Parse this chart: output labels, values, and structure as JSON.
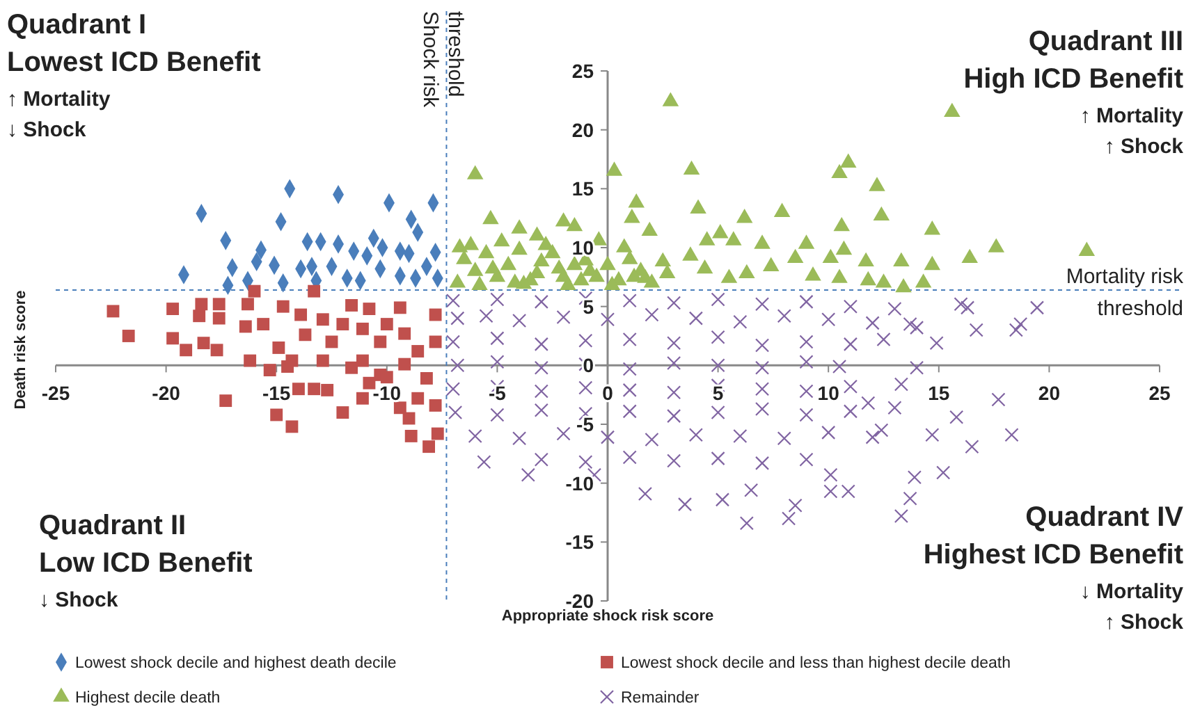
{
  "chart_data": {
    "type": "scatter",
    "xlabel": "Appropriate shock risk score",
    "ylabel": "Death risk score",
    "xlim": [
      -25,
      25
    ],
    "ylim": [
      -20,
      25
    ],
    "xticks": [
      -25,
      -20,
      -15,
      -10,
      -5,
      0,
      5,
      10,
      15,
      20,
      25
    ],
    "yticks": [
      -20,
      -15,
      -10,
      -5,
      0,
      5,
      10,
      15,
      20,
      25
    ],
    "grid": false,
    "legend": "bottom",
    "ref_lines": [
      {
        "axis": "x",
        "value": -7.3,
        "label": "Shock risk threshold",
        "color": "#4a7ebb",
        "line_style": "dashed"
      },
      {
        "axis": "y",
        "value": 6.4,
        "label": "Mortality risk threshold",
        "color": "#4a7ebb",
        "line_style": "dashed"
      }
    ],
    "annotations": [
      "Quadrant I\nLowest ICD Benefit\n↑ Mortality\n↓ Shock",
      "Quadrant III\nHigh ICD Benefit\n↑ Mortality\n↑ Shock",
      "Quadrant II\nLow ICD Benefit\n↓ Shock",
      "Quadrant IV\nHighest ICD Benefit\n↓ Mortality\n↑ Shock"
    ],
    "series": [
      {
        "name": "Lowest shock decile and highest death decile",
        "color": "#4a7ebb",
        "marker": "diamond",
        "x": [
          -14.4,
          -12.2,
          -18.4,
          -9.9,
          -7.9,
          -14.8,
          -8.9,
          -8.6,
          -17.3,
          -15.7,
          -13.6,
          -13.0,
          -12.2,
          -10.6,
          -19.2,
          -17.0,
          -15.9,
          -15.1,
          -13.9,
          -13.4,
          -12.5,
          -11.5,
          -10.9,
          -10.2,
          -9.4,
          -9.0,
          -7.8,
          -10.3,
          -9.4,
          -8.2,
          -16.3,
          -11.8,
          -11.2,
          -13.2,
          -8.7,
          -7.7,
          -17.2,
          -14.7
        ],
        "values": [
          15.0,
          14.5,
          12.9,
          13.8,
          13.8,
          12.2,
          12.4,
          11.3,
          10.6,
          9.8,
          10.5,
          10.5,
          10.3,
          10.8,
          7.7,
          8.3,
          8.8,
          8.5,
          8.2,
          8.4,
          8.4,
          9.7,
          9.3,
          10.0,
          9.7,
          9.5,
          9.6,
          8.2,
          7.6,
          8.4,
          7.2,
          7.4,
          7.2,
          7.2,
          7.4,
          7.4,
          6.8,
          7.0
        ]
      },
      {
        "name": "Lowest shock decile and less than highest decile death",
        "color": "#c0504d",
        "marker": "square",
        "x": [
          -22.4,
          -21.7,
          -19.7,
          -19.7,
          -19.1,
          -18.4,
          -18.5,
          -18.3,
          -17.7,
          -17.6,
          -17.6,
          -17.3,
          -16.4,
          -16.2,
          -16.3,
          -16.0,
          -15.3,
          -15.0,
          -14.3,
          -14.5,
          -14.0,
          -13.3,
          -12.7,
          -15.6,
          -14.9,
          -14.7,
          -13.9,
          -13.3,
          -12.9,
          -12.0,
          -12.0,
          -11.1,
          -11.1,
          -10.3,
          -10.3,
          -9.4,
          -9.4,
          -9.0,
          -8.9,
          -8.1,
          -7.7,
          -7.8,
          -8.6,
          -8.2,
          -11.6,
          -10.8,
          -10.0,
          -9.2,
          -12.5,
          -11.6,
          -10.8,
          -10.0,
          -9.2,
          -7.8,
          -7.8,
          -8.6,
          -13.7,
          -14.3,
          -12.9,
          -11.1
        ],
        "values": [
          4.6,
          2.5,
          4.8,
          2.3,
          1.3,
          5.2,
          4.2,
          1.9,
          1.3,
          5.2,
          4.0,
          -3.0,
          3.3,
          0.4,
          5.2,
          6.3,
          -0.4,
          -4.2,
          -5.2,
          -0.1,
          -2.0,
          -2.0,
          -2.1,
          3.5,
          1.5,
          5.0,
          4.3,
          6.3,
          3.9,
          3.5,
          -4.0,
          0.4,
          -2.8,
          2.0,
          -0.8,
          4.9,
          -3.6,
          -4.5,
          -6.0,
          -6.9,
          -5.8,
          4.3,
          1.2,
          -1.1,
          5.1,
          4.8,
          3.5,
          2.7,
          2.0,
          -0.2,
          -1.5,
          -1.0,
          0.1,
          2.0,
          -3.4,
          -2.8,
          2.6,
          0.4,
          0.4,
          3.1
        ]
      },
      {
        "name": "Highest decile death",
        "color": "#9bbb59",
        "marker": "triangle",
        "x": [
          2.85,
          15.6,
          -6.0,
          0.3,
          3.8,
          10.9,
          10.5,
          12.2,
          4.1,
          12.4,
          7.9,
          6.2,
          1.3,
          1.1,
          14.7,
          10.6,
          1.9,
          -5.3,
          -4.0,
          7.0,
          9.0,
          17.6,
          21.7,
          16.4,
          14.7,
          13.3,
          11.7,
          10.7,
          10.1,
          8.5,
          5.1,
          5.7,
          4.5,
          3.75,
          0.75,
          -0.4,
          -2.0,
          -1.5,
          -3.2,
          -6.7,
          14.3,
          13.4,
          12.5,
          11.8,
          10.5,
          9.3,
          7.4,
          6.3,
          5.5,
          4.4,
          2.7,
          1.7,
          -6.5,
          -6.0,
          -5.5,
          -5.0,
          -4.5,
          -4.0,
          -3.5,
          -3.0,
          -2.5,
          -2.0,
          -1.5,
          -1.0,
          -0.5,
          0.0,
          0.5,
          1.0,
          1.5,
          2.0,
          2.5,
          -6.8,
          -5.8,
          -4.8,
          -3.8,
          -2.8,
          -1.8,
          -0.8,
          0.2,
          1.2,
          -5.2,
          -3.2,
          -1.2,
          -2.2,
          -4.2,
          -6.2
        ],
        "values": [
          22.4,
          21.5,
          16.2,
          16.5,
          16.6,
          17.2,
          16.3,
          15.2,
          13.3,
          12.7,
          13.0,
          12.5,
          13.8,
          12.5,
          11.5,
          11.8,
          11.4,
          12.4,
          11.6,
          10.3,
          10.3,
          10.0,
          9.7,
          9.1,
          8.5,
          8.8,
          8.8,
          9.8,
          9.1,
          9.1,
          11.2,
          10.6,
          10.6,
          9.3,
          10.0,
          10.6,
          12.2,
          11.8,
          11.0,
          10.0,
          7.0,
          6.6,
          7.0,
          7.2,
          7.4,
          7.6,
          8.4,
          7.8,
          7.4,
          8.2,
          7.8,
          7.4,
          9.0,
          8.0,
          9.5,
          7.5,
          8.5,
          9.8,
          7.2,
          8.8,
          9.5,
          7.5,
          8.5,
          8.9,
          7.5,
          8.5,
          7.2,
          9.0,
          8.0,
          7.0,
          8.8,
          7.0,
          6.8,
          10.5,
          6.9,
          10.2,
          6.8,
          8.0,
          6.8,
          7.5,
          8.2,
          7.8,
          7.2,
          8.2,
          7.0,
          10.2
        ]
      },
      {
        "name": "Remainder",
        "color": "#8064a2",
        "marker": "cross",
        "x": [
          19.45,
          18.7,
          18.5,
          16.7,
          16.3,
          16.0,
          17.7,
          18.3,
          15.8,
          16.5,
          15.2,
          13.9,
          13.7,
          13.3,
          10.9,
          10.1,
          8.2,
          6.3,
          8.5,
          6.5,
          5.2,
          3.5,
          1.7,
          -3.6,
          -5.6,
          -0.6,
          10.1,
          11.8,
          14.9,
          13.7,
          13.3,
          14.7,
          12.4,
          14.0,
          -7.0,
          -5.0,
          -3.0,
          -1.0,
          1.0,
          3.0,
          5.0,
          7.0,
          9.0,
          11.0,
          13.0,
          -6.8,
          -5.5,
          -4.0,
          -2.0,
          0.0,
          2.0,
          4.0,
          6.0,
          8.0,
          10.0,
          12.0,
          14.0,
          -7.0,
          -5.0,
          -3.0,
          -1.0,
          1.0,
          3.0,
          5.0,
          7.0,
          9.0,
          11.0,
          12.5,
          -6.8,
          -5.0,
          -3.0,
          -1.0,
          1.0,
          3.0,
          5.0,
          7.0,
          9.0,
          10.5,
          -7.0,
          -5.0,
          -3.0,
          -1.0,
          1.0,
          3.0,
          5.0,
          7.0,
          9.0,
          11.0,
          -6.9,
          -5.0,
          -3.0,
          -1.0,
          1.0,
          3.0,
          5.0,
          7.0,
          9.0,
          11.0,
          13.0,
          -6.0,
          -4.0,
          -2.0,
          0.0,
          2.0,
          4.0,
          6.0,
          8.0,
          10.0,
          12.0,
          -3.0,
          -1.0,
          1.0,
          3.0,
          5.0,
          7.0,
          9.0
        ],
        "values": [
          4.9,
          3.5,
          3.0,
          3.0,
          4.9,
          5.2,
          -2.9,
          -5.9,
          -4.4,
          -6.9,
          -9.1,
          -9.5,
          -11.3,
          -12.8,
          -10.7,
          -10.7,
          -13.0,
          -13.4,
          -11.9,
          -10.6,
          -11.4,
          -11.8,
          -10.9,
          -9.3,
          -8.2,
          -9.3,
          -9.3,
          -3.2,
          1.9,
          3.5,
          -1.6,
          -5.9,
          -5.5,
          -0.2,
          5.5,
          5.6,
          5.4,
          5.7,
          5.5,
          5.3,
          5.6,
          5.2,
          5.4,
          5.0,
          4.8,
          4.0,
          4.2,
          3.8,
          4.1,
          3.9,
          4.3,
          4.0,
          3.7,
          4.2,
          3.9,
          3.6,
          3.2,
          2.0,
          2.3,
          1.8,
          2.1,
          2.2,
          1.9,
          2.4,
          1.7,
          2.0,
          1.8,
          2.2,
          0.0,
          0.3,
          -0.2,
          0.1,
          -0.3,
          0.2,
          0.0,
          -0.2,
          0.3,
          -0.1,
          -2.0,
          -1.8,
          -2.2,
          -1.9,
          -2.1,
          -2.3,
          -1.7,
          -2.0,
          -2.2,
          -1.8,
          -4.0,
          -4.2,
          -3.8,
          -4.1,
          -3.9,
          -4.3,
          -4.0,
          -3.7,
          -4.2,
          -3.9,
          -3.6,
          -6.0,
          -6.2,
          -5.8,
          -6.1,
          -6.3,
          -5.9,
          -6.0,
          -6.2,
          -5.7,
          -6.1,
          -8.0,
          -8.2,
          -7.8,
          -8.1,
          -7.9,
          -8.3,
          -8.0
        ]
      }
    ]
  }
}
